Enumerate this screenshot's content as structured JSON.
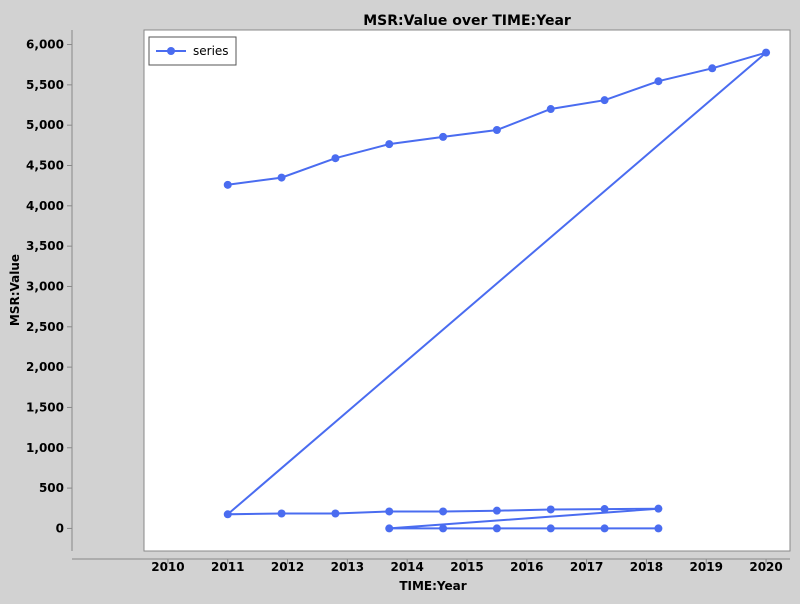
{
  "chart_data": {
    "type": "line",
    "title": "MSR:Value over TIME:Year",
    "xlabel": "TIME:Year",
    "ylabel": "MSR:Value",
    "xlim": [
      2009.6,
      2020.4
    ],
    "ylim": [
      -280,
      6180
    ],
    "x_ticks": [
      2010,
      2011,
      2012,
      2013,
      2014,
      2015,
      2016,
      2017,
      2018,
      2019,
      2020
    ],
    "y_ticks": [
      0,
      500,
      1000,
      1500,
      2000,
      2500,
      3000,
      3500,
      4000,
      4500,
      5000,
      5500,
      6000
    ],
    "grid": false,
    "legend_position": "top-left",
    "color": "#4a6cf0",
    "series": [
      {
        "name": "series",
        "points": [
          {
            "x": 2011.0,
            "y": 4260
          },
          {
            "x": 2011.9,
            "y": 4350
          },
          {
            "x": 2012.8,
            "y": 4590
          },
          {
            "x": 2013.7,
            "y": 4765
          },
          {
            "x": 2014.6,
            "y": 4855
          },
          {
            "x": 2015.5,
            "y": 4940
          },
          {
            "x": 2016.4,
            "y": 5200
          },
          {
            "x": 2017.3,
            "y": 5310
          },
          {
            "x": 2018.2,
            "y": 5545
          },
          {
            "x": 2019.1,
            "y": 5705
          },
          {
            "x": 2020.0,
            "y": 5900
          },
          {
            "x": 2011.0,
            "y": 175
          },
          {
            "x": 2011.9,
            "y": 185
          },
          {
            "x": 2012.8,
            "y": 185
          },
          {
            "x": 2013.7,
            "y": 210
          },
          {
            "x": 2014.6,
            "y": 210
          },
          {
            "x": 2015.5,
            "y": 220
          },
          {
            "x": 2016.4,
            "y": 235
          },
          {
            "x": 2017.3,
            "y": 240
          },
          {
            "x": 2018.2,
            "y": 245
          },
          {
            "x": 2013.7,
            "y": 0
          },
          {
            "x": 2014.6,
            "y": 0
          },
          {
            "x": 2015.5,
            "y": 0
          },
          {
            "x": 2016.4,
            "y": 0
          },
          {
            "x": 2017.3,
            "y": 0
          },
          {
            "x": 2018.2,
            "y": 0
          }
        ]
      }
    ]
  }
}
